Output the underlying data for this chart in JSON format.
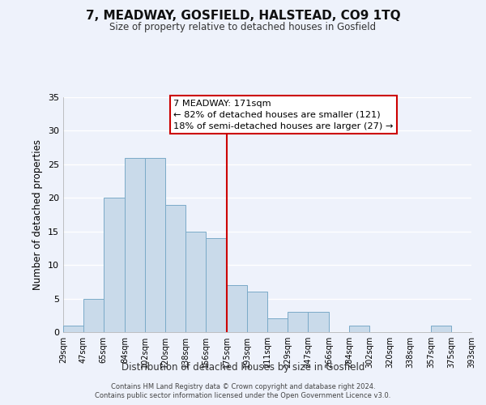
{
  "title": "7, MEADWAY, GOSFIELD, HALSTEAD, CO9 1TQ",
  "subtitle": "Size of property relative to detached houses in Gosfield",
  "xlabel": "Distribution of detached houses by size in Gosfield",
  "ylabel": "Number of detached properties",
  "bar_color": "#c9daea",
  "bar_edge_color": "#7aaac8",
  "background_color": "#eef2fb",
  "grid_color": "#ffffff",
  "vline_x": 175,
  "vline_color": "#cc0000",
  "bin_edges": [
    29,
    47,
    65,
    84,
    102,
    120,
    138,
    156,
    175,
    193,
    211,
    229,
    247,
    266,
    284,
    302,
    320,
    338,
    357,
    375,
    393
  ],
  "bin_counts": [
    1,
    5,
    20,
    26,
    26,
    19,
    15,
    14,
    7,
    6,
    2,
    3,
    3,
    0,
    1,
    0,
    0,
    0,
    1,
    0
  ],
  "ylim": [
    0,
    35
  ],
  "yticks": [
    0,
    5,
    10,
    15,
    20,
    25,
    30,
    35
  ],
  "annotation_title": "7 MEADWAY: 171sqm",
  "annotation_line1": "← 82% of detached houses are smaller (121)",
  "annotation_line2": "18% of semi-detached houses are larger (27) →",
  "annotation_box_color": "#ffffff",
  "annotation_box_edge": "#cc0000",
  "footer1": "Contains HM Land Registry data © Crown copyright and database right 2024.",
  "footer2": "Contains public sector information licensed under the Open Government Licence v3.0."
}
